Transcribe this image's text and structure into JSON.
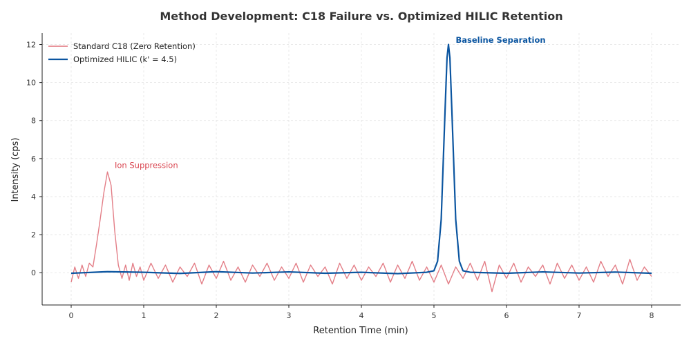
{
  "chart_data": {
    "type": "line",
    "title": "Method Development: C18 Failure vs. Optimized HILIC Retention",
    "xlabel": "Retention Time (min)",
    "ylabel": "Intensity (cps)",
    "xlim": [
      -0.4,
      8.4
    ],
    "ylim": [
      -1.7,
      12.6
    ],
    "xticks": [
      0,
      1,
      2,
      3,
      4,
      5,
      6,
      7,
      8
    ],
    "yticks": [
      0,
      2,
      4,
      6,
      8,
      10,
      12
    ],
    "grid": true,
    "legend_position": "top-left",
    "series": [
      {
        "name": "Standard C18 (Zero Retention)",
        "color": "#e0707a",
        "x": [
          0,
          0.05,
          0.1,
          0.15,
          0.2,
          0.25,
          0.3,
          0.35,
          0.4,
          0.45,
          0.5,
          0.55,
          0.6,
          0.65,
          0.7,
          0.75,
          0.8,
          0.85,
          0.9,
          0.95,
          1.0,
          1.1,
          1.2,
          1.3,
          1.4,
          1.5,
          1.6,
          1.7,
          1.8,
          1.9,
          2.0,
          2.1,
          2.2,
          2.3,
          2.4,
          2.5,
          2.6,
          2.7,
          2.8,
          2.9,
          3.0,
          3.1,
          3.2,
          3.3,
          3.4,
          3.5,
          3.6,
          3.7,
          3.8,
          3.9,
          4.0,
          4.1,
          4.2,
          4.3,
          4.4,
          4.5,
          4.6,
          4.7,
          4.8,
          4.9,
          5.0,
          5.1,
          5.2,
          5.3,
          5.4,
          5.5,
          5.6,
          5.7,
          5.8,
          5.9,
          6.0,
          6.1,
          6.2,
          6.3,
          6.4,
          6.5,
          6.6,
          6.7,
          6.8,
          6.9,
          7.0,
          7.1,
          7.2,
          7.3,
          7.4,
          7.5,
          7.6,
          7.7,
          7.8,
          7.9,
          8.0
        ],
        "y": [
          -0.5,
          0.3,
          -0.3,
          0.4,
          -0.2,
          0.5,
          0.3,
          1.5,
          2.8,
          4.2,
          5.3,
          4.6,
          2.2,
          0.4,
          -0.3,
          0.4,
          -0.4,
          0.5,
          -0.2,
          0.3,
          -0.4,
          0.5,
          -0.3,
          0.4,
          -0.5,
          0.3,
          -0.2,
          0.5,
          -0.6,
          0.4,
          -0.3,
          0.6,
          -0.4,
          0.3,
          -0.5,
          0.4,
          -0.2,
          0.5,
          -0.4,
          0.3,
          -0.3,
          0.5,
          -0.5,
          0.4,
          -0.2,
          0.3,
          -0.6,
          0.5,
          -0.3,
          0.4,
          -0.4,
          0.3,
          -0.2,
          0.5,
          -0.5,
          0.4,
          -0.3,
          0.6,
          -0.4,
          0.3,
          -0.5,
          0.4,
          -0.6,
          0.3,
          -0.3,
          0.5,
          -0.4,
          0.6,
          -1.0,
          0.4,
          -0.3,
          0.5,
          -0.5,
          0.3,
          -0.2,
          0.4,
          -0.6,
          0.5,
          -0.3,
          0.4,
          -0.4,
          0.3,
          -0.5,
          0.6,
          -0.2,
          0.4,
          -0.6,
          0.7,
          -0.4,
          0.3,
          -0.2
        ]
      },
      {
        "name": "Optimized HILIC (k' = 4.5)",
        "color": "#0b55a0",
        "x": [
          0,
          0.5,
          1.0,
          1.5,
          2.0,
          2.5,
          3.0,
          3.5,
          4.0,
          4.5,
          4.9,
          5.0,
          5.05,
          5.1,
          5.15,
          5.18,
          5.2,
          5.22,
          5.25,
          5.3,
          5.35,
          5.4,
          5.5,
          6.0,
          6.5,
          7.0,
          7.5,
          8.0
        ],
        "y": [
          -0.03,
          0.05,
          0.02,
          -0.04,
          0.05,
          -0.02,
          0.04,
          -0.03,
          0.02,
          -0.05,
          0.02,
          0.1,
          0.6,
          2.8,
          8.2,
          11.3,
          12.0,
          11.3,
          8.2,
          2.8,
          0.6,
          0.1,
          0.02,
          -0.03,
          0.04,
          -0.02,
          0.03,
          -0.03
        ]
      }
    ],
    "annotations": [
      {
        "text": "Ion Suppression",
        "x": 0.6,
        "y": 5.5,
        "color": "#d9444f",
        "bold": false
      },
      {
        "text": "Baseline Separation",
        "x": 5.3,
        "y": 12.1,
        "color": "#0b55a0",
        "bold": true
      }
    ]
  }
}
